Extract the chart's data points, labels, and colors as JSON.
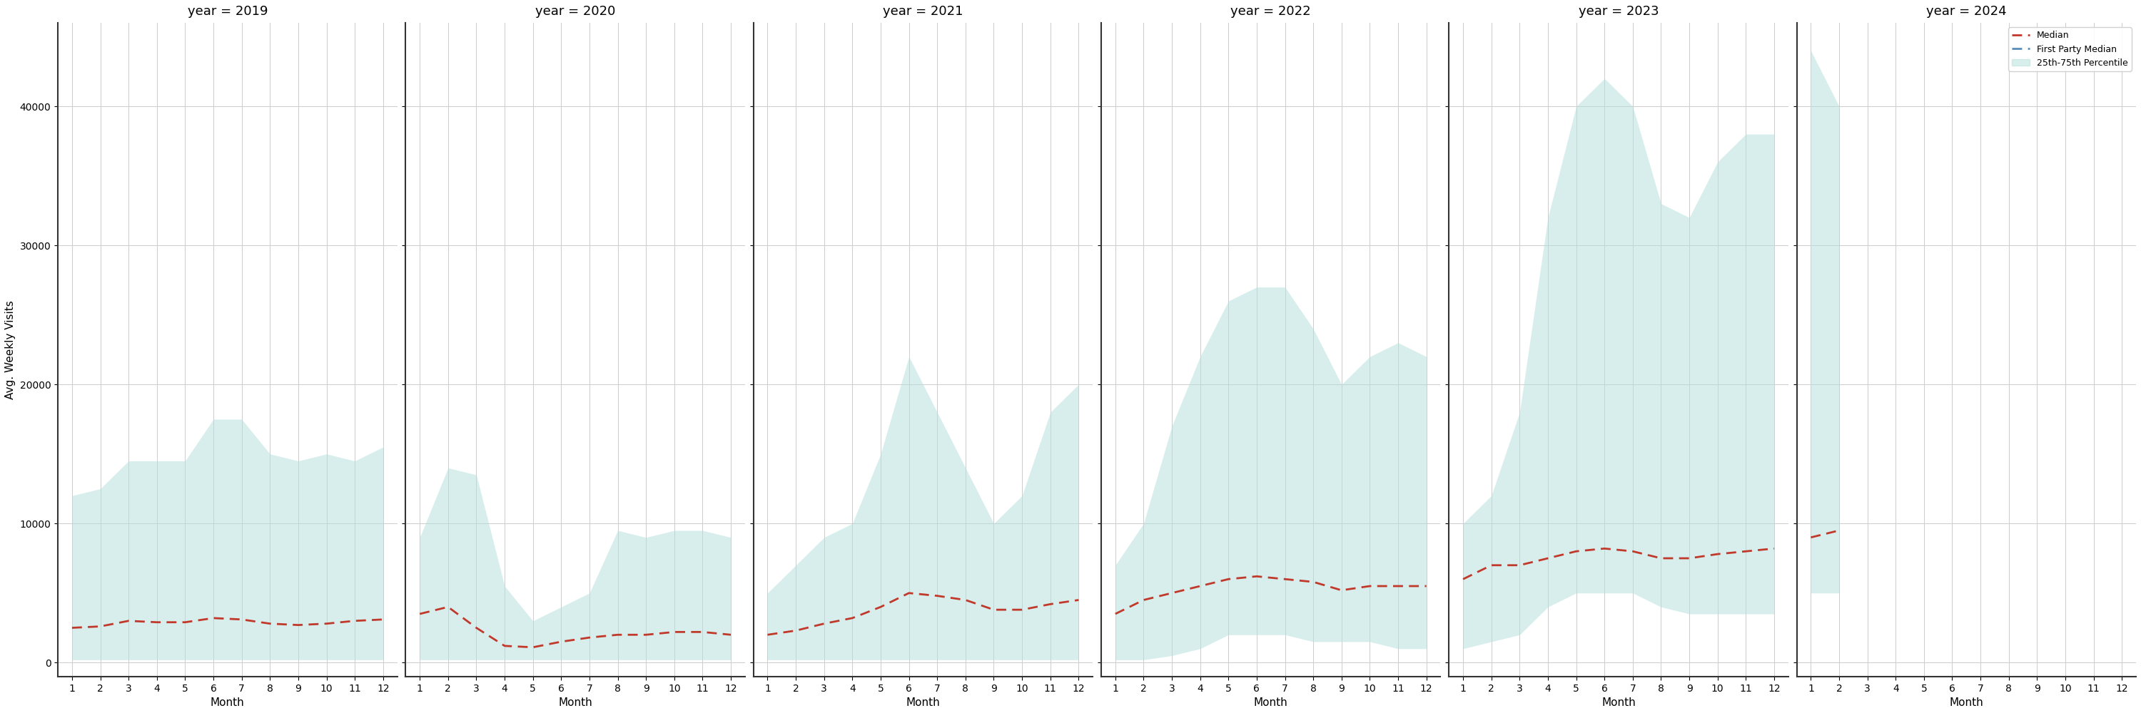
{
  "years": [
    2019,
    2020,
    2021,
    2022,
    2023,
    2024
  ],
  "ylim": [
    -1000,
    46000
  ],
  "yticks": [
    0,
    10000,
    20000,
    30000,
    40000
  ],
  "fill_color": "#b2dfdb",
  "fill_alpha": 0.5,
  "median_color": "#c0392b",
  "fp_median_color": "#5b8db8",
  "title_fontsize": 13,
  "label_fontsize": 11,
  "tick_fontsize": 10,
  "ylabel": "Avg. Weekly Visits",
  "xlabel": "Month",
  "data": {
    "2019": {
      "months": [
        1,
        2,
        3,
        4,
        5,
        6,
        7,
        8,
        9,
        10,
        11,
        12
      ],
      "p25": [
        200,
        200,
        200,
        200,
        200,
        200,
        200,
        200,
        200,
        200,
        200,
        200
      ],
      "p75": [
        12000,
        12500,
        14500,
        14500,
        14500,
        17500,
        17500,
        15000,
        14500,
        15000,
        14500,
        15500
      ],
      "median": [
        2500,
        2600,
        3000,
        2900,
        2900,
        3200,
        3100,
        2800,
        2700,
        2800,
        3000,
        3100
      ],
      "fp_median": []
    },
    "2020": {
      "months": [
        1,
        2,
        3,
        4,
        5,
        6,
        7,
        8,
        9,
        10,
        11,
        12
      ],
      "p25": [
        200,
        200,
        200,
        200,
        200,
        200,
        200,
        200,
        200,
        200,
        200,
        200
      ],
      "p75": [
        9000,
        14000,
        13500,
        5500,
        3000,
        4000,
        5000,
        9500,
        9000,
        9500,
        9500,
        9000
      ],
      "median": [
        3500,
        4000,
        2500,
        1200,
        1100,
        1500,
        1800,
        2000,
        2000,
        2200,
        2200,
        2000
      ],
      "fp_median": []
    },
    "2021": {
      "months": [
        1,
        2,
        3,
        4,
        5,
        6,
        7,
        8,
        9,
        10,
        11,
        12
      ],
      "p25": [
        200,
        200,
        200,
        200,
        200,
        200,
        200,
        200,
        200,
        200,
        200,
        200
      ],
      "p75": [
        5000,
        7000,
        9000,
        10000,
        15000,
        22000,
        18000,
        14000,
        10000,
        12000,
        18000,
        20000
      ],
      "median": [
        2000,
        2300,
        2800,
        3200,
        4000,
        5000,
        4800,
        4500,
        3800,
        3800,
        4200,
        4500
      ],
      "fp_median": []
    },
    "2022": {
      "months": [
        1,
        2,
        3,
        4,
        5,
        6,
        7,
        8,
        9,
        10,
        11,
        12
      ],
      "p25": [
        200,
        200,
        500,
        1000,
        2000,
        2000,
        2000,
        1500,
        1500,
        1500,
        1000,
        1000
      ],
      "p75": [
        7000,
        10000,
        17000,
        22000,
        26000,
        27000,
        27000,
        24000,
        20000,
        22000,
        23000,
        22000
      ],
      "median": [
        3500,
        4500,
        5000,
        5500,
        6000,
        6200,
        6000,
        5800,
        5200,
        5500,
        5500,
        5500
      ],
      "fp_median": []
    },
    "2023": {
      "months": [
        1,
        2,
        3,
        4,
        5,
        6,
        7,
        8,
        9,
        10,
        11,
        12
      ],
      "p25": [
        1000,
        1500,
        2000,
        4000,
        5000,
        5000,
        5000,
        4000,
        3500,
        3500,
        3500,
        3500
      ],
      "p75": [
        10000,
        12000,
        18000,
        32000,
        40000,
        42000,
        40000,
        33000,
        32000,
        36000,
        38000,
        38000
      ],
      "median": [
        6000,
        7000,
        7000,
        7500,
        8000,
        8200,
        8000,
        7500,
        7500,
        7800,
        8000,
        8200
      ],
      "fp_median": []
    },
    "2024": {
      "months": [
        1,
        2
      ],
      "p25": [
        5000,
        5000
      ],
      "p75": [
        44000,
        40000
      ],
      "median": [
        9000,
        9500
      ],
      "fp_median": []
    }
  },
  "legend_labels": [
    "Median",
    "First Party Median",
    "25th-75th Percentile"
  ]
}
